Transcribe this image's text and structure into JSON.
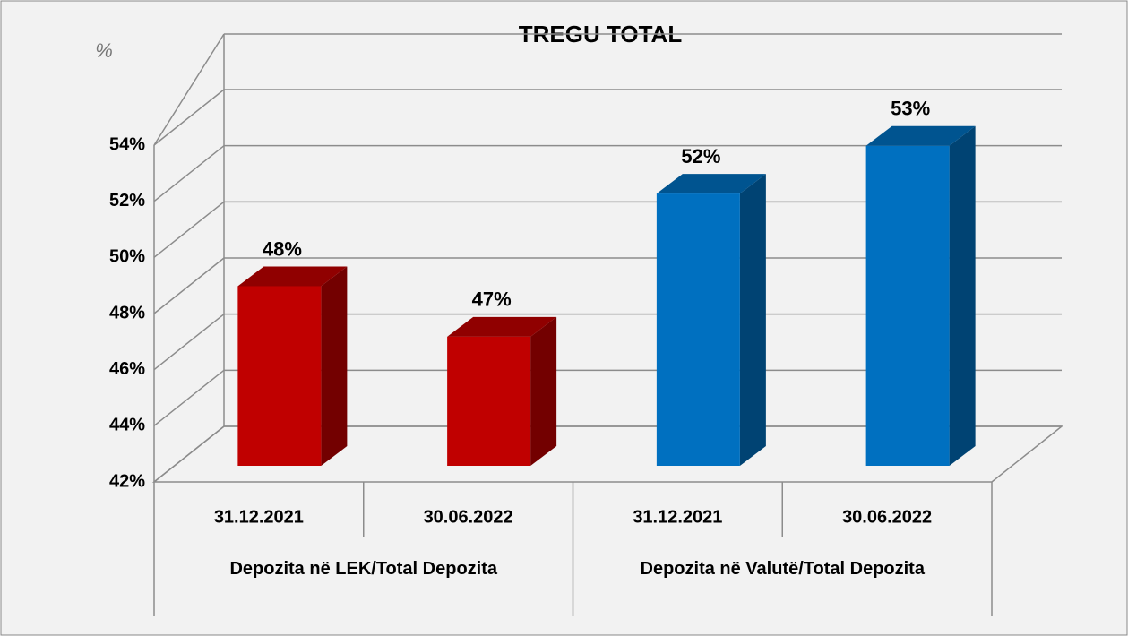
{
  "chart_data": {
    "type": "bar3d",
    "title": "TREGU TOTAL",
    "y_axis_label": "%",
    "categories": [
      "31.12.2021",
      "30.06.2022",
      "31.12.2021",
      "30.06.2022"
    ],
    "groups": [
      {
        "label": "Depozita në LEK/Total Depozita",
        "span": 2
      },
      {
        "label": "Depozita në Valutë/Total Depozita",
        "span": 2
      }
    ],
    "values": [
      48.4,
      46.6,
      51.7,
      53.4
    ],
    "value_labels": [
      "48%",
      "47%",
      "52%",
      "53%"
    ],
    "colors": [
      "#c00000",
      "#c00000",
      "#0070c0",
      "#0070c0"
    ],
    "ylim": [
      42,
      54
    ],
    "yticks": [
      {
        "value": 42,
        "label": "42%"
      },
      {
        "value": 44,
        "label": "44%"
      },
      {
        "value": 46,
        "label": "46%"
      },
      {
        "value": 48,
        "label": "48%"
      },
      {
        "value": 50,
        "label": "50%"
      },
      {
        "value": 52,
        "label": "52%"
      },
      {
        "value": 54,
        "label": "54%"
      }
    ],
    "grid": true
  }
}
